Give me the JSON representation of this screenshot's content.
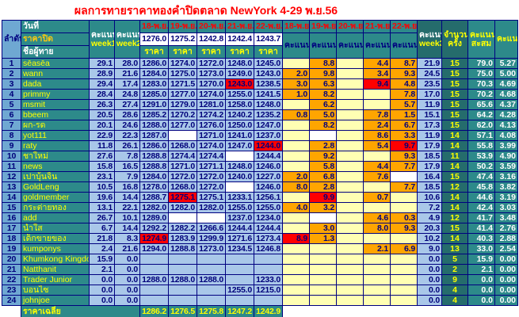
{
  "title": "ผลการทายราคาทองคำปิดตลาด NewYork 4-29 พ.ย.56",
  "header": {
    "rank": "ลำดับ",
    "date_row": "วันที่",
    "close_row": "ราคาปิด",
    "name_row": "ชื่อผู้ทาย",
    "score_word": "คะแนน",
    "week1": "week1",
    "week2": "week2",
    "week3": "week3",
    "dates": [
      "18-พ.ย.",
      "19-พ.ย.",
      "20-พ.ย.",
      "21-พ.ย.",
      "22-พ.ย."
    ],
    "close_prices": [
      "1276.0",
      "1275.2",
      "1242.8",
      "1242.4",
      "1243.7"
    ],
    "price_label": "ราคา",
    "score_label": "คะแนน",
    "count_top": "จำนวน",
    "count_bottom": "ครั้ง",
    "total_top": "คะแนน",
    "total_bottom": "สะสม",
    "avg_label": "คะแนน เฉลี่ย"
  },
  "colors": {
    "accent_teal": "#2D8A8A",
    "dark_teal": "#256C6C",
    "light_blue": "#A9C7E9",
    "rank_blue": "#6FA8D2",
    "score_filled": "#FFA500",
    "score_empty": "#FFFFB3",
    "highlight_red": "#FF0000",
    "navy_text": "#00007A",
    "yellow_text": "#FFFF00"
  },
  "rows": [
    {
      "no": "1",
      "name": "sēasēa",
      "w1": "29.1",
      "w2": "28.0",
      "prices": [
        [
          "1286.0"
        ],
        [
          "1274.0"
        ],
        [
          "1272.0"
        ],
        [
          "1248.0"
        ],
        [
          "1245.0"
        ]
      ],
      "scores": [
        [
          ""
        ],
        [
          "8.8"
        ],
        [
          ""
        ],
        [
          "4.4"
        ],
        [
          "8.7"
        ]
      ],
      "w3": "21.9",
      "count": "15",
      "total": "79.0",
      "avg": "5.27"
    },
    {
      "no": "2",
      "name": "wann",
      "w1": "28.9",
      "w2": "21.6",
      "prices": [
        [
          "1284.0"
        ],
        [
          "1275.0"
        ],
        [
          "1273.0"
        ],
        [
          "1249.0"
        ],
        [
          "1243.0"
        ]
      ],
      "scores": [
        [
          "2.0"
        ],
        [
          "9.8"
        ],
        [
          ""
        ],
        [
          "3.4"
        ],
        [
          "9.3"
        ]
      ],
      "w3": "24.5",
      "count": "15",
      "total": "75.0",
      "avg": "5.00"
    },
    {
      "no": "3",
      "name": "dada",
      "w1": "29.4",
      "w2": "17.4",
      "prices": [
        [
          "1283.0"
        ],
        [
          "1271.5"
        ],
        [
          "1270.0"
        ],
        [
          "1243.0",
          "r"
        ],
        [
          "1238.5"
        ]
      ],
      "scores": [
        [
          "3.0"
        ],
        [
          "6.3"
        ],
        [
          ""
        ],
        [
          "9.4",
          "r"
        ],
        [
          "4.8"
        ]
      ],
      "w3": "23.5",
      "count": "15",
      "total": "70.3",
      "avg": "4.69"
    },
    {
      "no": "4",
      "name": "primmy",
      "w1": "28.4",
      "w2": "24.8",
      "prices": [
        [
          "1285.0"
        ],
        [
          "1277.0"
        ],
        [
          "1274.0"
        ],
        [
          "1255.0"
        ],
        [
          "1241.5"
        ]
      ],
      "scores": [
        [
          "1.0"
        ],
        [
          "8.2"
        ],
        [
          ""
        ],
        [
          ""
        ],
        [
          "7.8"
        ]
      ],
      "w3": "17.0",
      "count": "15",
      "total": "70.2",
      "avg": "4.68"
    },
    {
      "no": "5",
      "name": "msmit",
      "w1": "26.3",
      "w2": "27.4",
      "prices": [
        [
          "1291.0"
        ],
        [
          "1279.0"
        ],
        [
          "1281.0"
        ],
        [
          "1258.0"
        ],
        [
          "1248.0"
        ]
      ],
      "scores": [
        [
          ""
        ],
        [
          "6.2"
        ],
        [
          ""
        ],
        [
          ""
        ],
        [
          "5.7"
        ]
      ],
      "w3": "11.9",
      "count": "15",
      "total": "65.6",
      "avg": "4.37"
    },
    {
      "no": "6",
      "name": "bbeem",
      "w1": "20.5",
      "w2": "28.6",
      "prices": [
        [
          "1285.2"
        ],
        [
          "1270.2"
        ],
        [
          "1274.2"
        ],
        [
          "1240.2"
        ],
        [
          "1235.2"
        ]
      ],
      "scores": [
        [
          "0.8"
        ],
        [
          "5.0"
        ],
        [
          ""
        ],
        [
          "7.8"
        ],
        [
          "1.5"
        ]
      ],
      "w3": "15.1",
      "count": "15",
      "total": "64.2",
      "avg": "4.28"
    },
    {
      "no": "7",
      "name": "ผก-รด",
      "w1": "20.1",
      "w2": "24.6",
      "prices": [
        [
          "1288.0"
        ],
        [
          "1277.0"
        ],
        [
          "1276.0"
        ],
        [
          "1250.0"
        ],
        [
          "1247.0"
        ]
      ],
      "scores": [
        [
          ""
        ],
        [
          "8.2"
        ],
        [
          ""
        ],
        [
          "2.4"
        ],
        [
          "6.7"
        ]
      ],
      "w3": "17.3",
      "count": "15",
      "total": "62.0",
      "avg": "4.13"
    },
    {
      "no": "8",
      "name": "yot111",
      "w1": "22.9",
      "w2": "22.3",
      "prices": [
        [
          "1287.0"
        ],
        [
          "",
          "w"
        ],
        [
          "1271.0"
        ],
        [
          "1241.0"
        ],
        [
          "1237.0"
        ]
      ],
      "scores": [
        [
          ""
        ],
        [
          "",
          "w"
        ],
        [
          ""
        ],
        [
          "8.6"
        ],
        [
          "3.3"
        ]
      ],
      "w3": "11.9",
      "count": "14",
      "total": "57.1",
      "avg": "4.08"
    },
    {
      "no": "9",
      "name": "raty",
      "w1": "11.8",
      "w2": "26.1",
      "prices": [
        [
          "1286.0"
        ],
        [
          "1268.0"
        ],
        [
          "1274.0"
        ],
        [
          "1247.0"
        ],
        [
          "1244.0",
          "r"
        ]
      ],
      "scores": [
        [
          ""
        ],
        [
          "2.8"
        ],
        [
          ""
        ],
        [
          "5.4"
        ],
        [
          "9.7",
          "r"
        ]
      ],
      "w3": "17.9",
      "count": "14",
      "total": "55.8",
      "avg": "3.99"
    },
    {
      "no": "10",
      "name": "ชาใหม่",
      "w1": "27.6",
      "w2": "7.8",
      "prices": [
        [
          "1288.8"
        ],
        [
          "1274.4"
        ],
        [
          "1274.4"
        ],
        [
          "",
          "w"
        ],
        [
          "1244.4"
        ]
      ],
      "scores": [
        [
          ""
        ],
        [
          "9.2"
        ],
        [
          ""
        ],
        [
          ""
        ],
        [
          "9.3"
        ]
      ],
      "w3": "18.5",
      "count": "11",
      "total": "53.9",
      "avg": "4.90"
    },
    {
      "no": "11",
      "name": "news",
      "w1": "15.8",
      "w2": "16.5",
      "prices": [
        [
          "1288.8"
        ],
        [
          "1271.0"
        ],
        [
          "1271.1"
        ],
        [
          "1248.0"
        ],
        [
          "1246.0"
        ]
      ],
      "scores": [
        [
          ""
        ],
        [
          "5.8"
        ],
        [
          ""
        ],
        [
          "4.4"
        ],
        [
          "7.7"
        ]
      ],
      "w3": "17.9",
      "count": "14",
      "total": "50.2",
      "avg": "3.59"
    },
    {
      "no": "12",
      "name": "เปาบุ้นจิ้น",
      "w1": "23.1",
      "w2": "7.9",
      "prices": [
        [
          "1284.0"
        ],
        [
          "1272.0"
        ],
        [
          "1272.0"
        ],
        [
          "1240.0"
        ],
        [
          "1227.0"
        ]
      ],
      "scores": [
        [
          "2.0"
        ],
        [
          "6.8"
        ],
        [
          ""
        ],
        [
          "7.6"
        ],
        [
          "",
          "w"
        ]
      ],
      "w3": "16.4",
      "count": "15",
      "total": "47.4",
      "avg": "3.16"
    },
    {
      "no": "13",
      "name": "GoldLeng",
      "w1": "10.5",
      "w2": "16.8",
      "prices": [
        [
          "1278.0"
        ],
        [
          "1268.0"
        ],
        [
          "1272.0"
        ],
        [
          "",
          "w"
        ],
        [
          "1246.0"
        ]
      ],
      "scores": [
        [
          "8.0"
        ],
        [
          "2.8"
        ],
        [
          ""
        ],
        [
          ""
        ],
        [
          "7.7"
        ]
      ],
      "w3": "18.5",
      "count": "12",
      "total": "45.8",
      "avg": "3.82"
    },
    {
      "no": "14",
      "name": "goldmember",
      "w1": "19.6",
      "w2": "14.4",
      "prices": [
        [
          "1288.7"
        ],
        [
          "1275.1",
          "r"
        ],
        [
          "1275.1"
        ],
        [
          "1233.1"
        ],
        [
          "1256.1"
        ]
      ],
      "scores": [
        [
          ""
        ],
        [
          "9.9",
          "r"
        ],
        [
          ""
        ],
        [
          "0.7"
        ],
        [
          ""
        ]
      ],
      "w3": "10.6",
      "count": "14",
      "total": "44.6",
      "avg": "3.19"
    },
    {
      "no": "15",
      "name": "กระต่ายทอง",
      "w1": "13.1",
      "w2": "22.1",
      "prices": [
        [
          "1282.0"
        ],
        [
          "1282.0"
        ],
        [
          "1282.0"
        ],
        [
          "1255.0"
        ],
        [
          "1255.0"
        ]
      ],
      "scores": [
        [
          "4.0"
        ],
        [
          "3.2"
        ],
        [
          ""
        ],
        [
          ""
        ],
        [
          ""
        ]
      ],
      "w3": "7.2",
      "count": "14",
      "total": "42.4",
      "avg": "3.03"
    },
    {
      "no": "16",
      "name": "add",
      "w1": "26.7",
      "w2": "10.1",
      "prices": [
        [
          "1289.0"
        ],
        [
          "",
          "w"
        ],
        [
          "",
          "w"
        ],
        [
          "1237.0"
        ],
        [
          "1234.0"
        ]
      ],
      "scores": [
        [
          ""
        ],
        [
          "",
          "w"
        ],
        [
          ""
        ],
        [
          "4.6"
        ],
        [
          "0.3"
        ]
      ],
      "w3": "4.9",
      "count": "12",
      "total": "41.7",
      "avg": "3.48"
    },
    {
      "no": "17",
      "name": "น้ำใส",
      "w1": "6.7",
      "w2": "14.4",
      "prices": [
        [
          "1292.2"
        ],
        [
          "1282.2"
        ],
        [
          "1266.6"
        ],
        [
          "1244.4"
        ],
        [
          "1244.4"
        ]
      ],
      "scores": [
        [
          ""
        ],
        [
          "3.0"
        ],
        [
          ""
        ],
        [
          "8.0"
        ],
        [
          "9.3"
        ]
      ],
      "w3": "20.3",
      "count": "15",
      "total": "41.4",
      "avg": "2.76"
    },
    {
      "no": "18",
      "name": "เด็กขายของ",
      "w1": "21.8",
      "w2": "8.3",
      "prices": [
        [
          "1274.9",
          "r"
        ],
        [
          "1283.9"
        ],
        [
          "1299.9"
        ],
        [
          "1271.6"
        ],
        [
          "1273.4"
        ]
      ],
      "scores": [
        [
          "8.9",
          "r"
        ],
        [
          "1.3"
        ],
        [
          ""
        ],
        [
          ""
        ],
        [
          ""
        ]
      ],
      "w3": "10.2",
      "count": "14",
      "total": "40.3",
      "avg": "2.88"
    },
    {
      "no": "19",
      "name": "kumponys",
      "w1": "2.4",
      "w2": "21.6",
      "prices": [
        [
          "1294.0"
        ],
        [
          "1288.8"
        ],
        [
          "1273.0"
        ],
        [
          "1234.5"
        ],
        [
          "1246.8"
        ]
      ],
      "scores": [
        [
          ""
        ],
        [
          ""
        ],
        [
          ""
        ],
        [
          "2.1"
        ],
        [
          "6.9"
        ]
      ],
      "w3": "9.0",
      "count": "13",
      "total": "33.0",
      "avg": "2.54"
    },
    {
      "no": "20",
      "name": "Khumkong Kingdo",
      "w1": "15.9",
      "w2": "0.0",
      "prices": [
        [
          ""
        ],
        [
          ""
        ],
        [
          ""
        ],
        [
          ""
        ],
        [
          ""
        ]
      ],
      "scores": [
        [
          ""
        ],
        [
          ""
        ],
        [
          ""
        ],
        [
          ""
        ],
        [
          ""
        ]
      ],
      "w3": "0.0",
      "count": "5",
      "total": "15.9",
      "avg": "0.00"
    },
    {
      "no": "21",
      "name": "Natthanit",
      "w1": "2.1",
      "w2": "0.0",
      "prices": [
        [
          ""
        ],
        [
          ""
        ],
        [
          ""
        ],
        [
          ""
        ],
        [
          ""
        ]
      ],
      "scores": [
        [
          ""
        ],
        [
          ""
        ],
        [
          ""
        ],
        [
          ""
        ],
        [
          ""
        ]
      ],
      "w3": "0.0",
      "count": "2",
      "total": "2.1",
      "avg": "0.00"
    },
    {
      "no": "22",
      "name": "Trader Junior",
      "w1": "0.0",
      "w2": "0.0",
      "prices": [
        [
          "1288.0"
        ],
        [
          "1288.0"
        ],
        [
          "1288.0"
        ],
        [
          ""
        ],
        [
          "1233.0"
        ]
      ],
      "scores": [
        [
          ""
        ],
        [
          ""
        ],
        [
          ""
        ],
        [
          ""
        ],
        [
          ""
        ]
      ],
      "w3": "0.0",
      "count": "9",
      "total": "0.0",
      "avg": "0.00"
    },
    {
      "no": "23",
      "name": "บอนไซ",
      "w1": "0.0",
      "w2": "0.0",
      "prices": [
        [
          ""
        ],
        [
          ""
        ],
        [
          ""
        ],
        [
          "1255.0"
        ],
        [
          "1215.0"
        ]
      ],
      "scores": [
        [
          ""
        ],
        [
          ""
        ],
        [
          ""
        ],
        [
          ""
        ],
        [
          ""
        ]
      ],
      "w3": "0.0",
      "count": "4",
      "total": "0.0",
      "avg": "0.00"
    },
    {
      "no": "24",
      "name": "johnjoe",
      "w1": "0.0",
      "w2": "0.0",
      "prices": [
        [
          ""
        ],
        [
          ""
        ],
        [
          ""
        ],
        [
          ""
        ],
        [
          ""
        ]
      ],
      "scores": [
        [
          ""
        ],
        [
          ""
        ],
        [
          ""
        ],
        [
          ""
        ],
        [
          ""
        ]
      ],
      "w3": "0.0",
      "count": "4",
      "total": "0.0",
      "avg": "0.00"
    }
  ],
  "footer": {
    "label": "ราคาเฉลี่ย",
    "values": [
      "1286.2",
      "1276.5",
      "1275.8",
      "1247.2",
      "1242.9"
    ]
  }
}
